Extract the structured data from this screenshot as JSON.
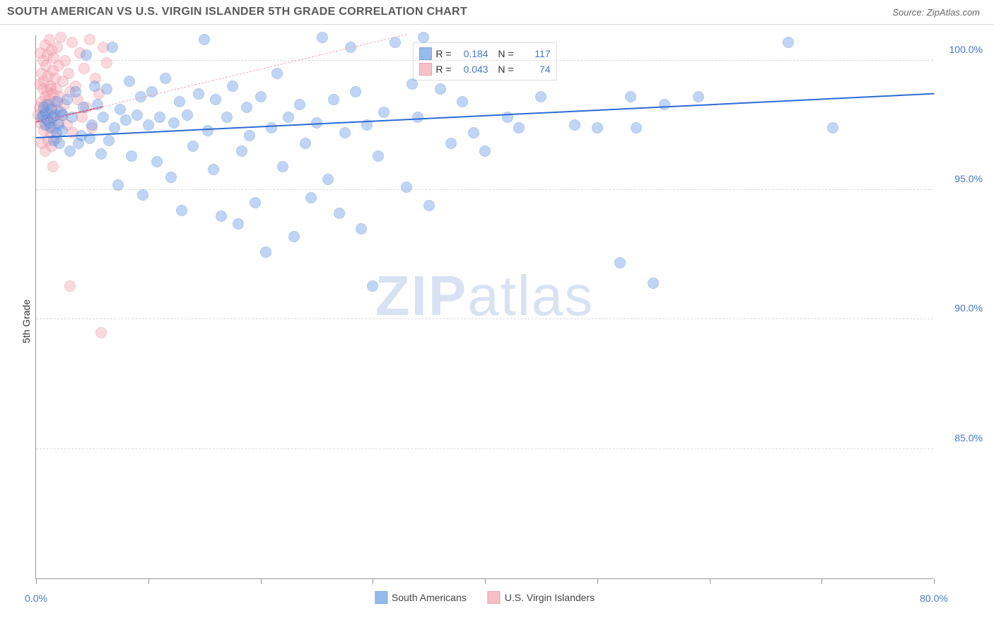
{
  "header": {
    "title": "SOUTH AMERICAN VS U.S. VIRGIN ISLANDER 5TH GRADE CORRELATION CHART",
    "source": "Source: ZipAtlas.com"
  },
  "ylabel": "5th Grade",
  "watermark": {
    "bold": "ZIP",
    "light": "atlas"
  },
  "chart": {
    "type": "scatter",
    "background_color": "#ffffff",
    "grid_color": "#dcdcdc",
    "axis_color": "#999999",
    "label_color": "#4978c9",
    "label_fontsize": 14,
    "xlim": [
      0,
      80
    ],
    "ylim": [
      80,
      101
    ],
    "xticks": [
      0,
      10,
      20,
      30,
      40,
      50,
      60,
      70,
      80
    ],
    "xtick_labels": {
      "0": "0.0%",
      "80": "80.0%"
    },
    "yticks": [
      85,
      90,
      95,
      100
    ],
    "ytick_labels": {
      "85": "85.0%",
      "90": "90.0%",
      "95": "95.0%",
      "100": "100.0%"
    },
    "marker_radius": 8,
    "marker_opacity": 0.42,
    "marker_border_opacity": 0.75,
    "series": [
      {
        "name": "South Americans",
        "color": "#6b9de8",
        "border_color": "#4a7fd0",
        "R": "0.184",
        "N": "117",
        "trend": {
          "x1": 0,
          "y1": 97.0,
          "x2": 80,
          "y2": 98.7,
          "color": "#2d6bd4",
          "width": 2.5,
          "dash": false
        },
        "cone": {
          "x1": 0,
          "y1": 97.6,
          "x2": 33,
          "y2": 101.0,
          "color": "#f4a6b3",
          "width": 1,
          "dash": true
        },
        "points": [
          [
            0.5,
            97.8
          ],
          [
            0.6,
            97.9
          ],
          [
            0.7,
            98.2
          ],
          [
            0.8,
            97.5
          ],
          [
            0.9,
            98.0
          ],
          [
            1.0,
            97.7
          ],
          [
            1.1,
            98.3
          ],
          [
            1.2,
            97.6
          ],
          [
            1.3,
            97.4
          ],
          [
            1.4,
            98.1
          ],
          [
            1.5,
            97.8
          ],
          [
            1.6,
            96.9
          ],
          [
            1.7,
            97.9
          ],
          [
            1.8,
            97.2
          ],
          [
            1.9,
            98.4
          ],
          [
            2.0,
            97.5
          ],
          [
            2.1,
            96.8
          ],
          [
            2.2,
            98.0
          ],
          [
            2.3,
            97.3
          ],
          [
            2.4,
            97.9
          ],
          [
            2.8,
            98.5
          ],
          [
            3.0,
            96.5
          ],
          [
            3.2,
            97.8
          ],
          [
            3.5,
            98.8
          ],
          [
            3.8,
            96.8
          ],
          [
            4.0,
            97.1
          ],
          [
            4.2,
            98.2
          ],
          [
            4.5,
            100.2
          ],
          [
            4.8,
            97.0
          ],
          [
            5.0,
            97.5
          ],
          [
            5.2,
            99.0
          ],
          [
            5.5,
            98.3
          ],
          [
            5.8,
            96.4
          ],
          [
            6.0,
            97.8
          ],
          [
            6.3,
            98.9
          ],
          [
            6.5,
            96.9
          ],
          [
            6.8,
            100.5
          ],
          [
            7.0,
            97.4
          ],
          [
            7.3,
            95.2
          ],
          [
            7.5,
            98.1
          ],
          [
            8.0,
            97.7
          ],
          [
            8.3,
            99.2
          ],
          [
            8.5,
            96.3
          ],
          [
            9.0,
            97.9
          ],
          [
            9.3,
            98.6
          ],
          [
            9.5,
            94.8
          ],
          [
            10.0,
            97.5
          ],
          [
            10.3,
            98.8
          ],
          [
            10.8,
            96.1
          ],
          [
            11.0,
            97.8
          ],
          [
            11.5,
            99.3
          ],
          [
            12.0,
            95.5
          ],
          [
            12.3,
            97.6
          ],
          [
            12.8,
            98.4
          ],
          [
            13.0,
            94.2
          ],
          [
            13.5,
            97.9
          ],
          [
            14.0,
            96.7
          ],
          [
            14.5,
            98.7
          ],
          [
            15.0,
            100.8
          ],
          [
            15.3,
            97.3
          ],
          [
            15.8,
            95.8
          ],
          [
            16.0,
            98.5
          ],
          [
            16.5,
            94.0
          ],
          [
            17.0,
            97.8
          ],
          [
            17.5,
            99.0
          ],
          [
            18.0,
            93.7
          ],
          [
            18.3,
            96.5
          ],
          [
            18.8,
            98.2
          ],
          [
            19.0,
            97.1
          ],
          [
            19.5,
            94.5
          ],
          [
            20.0,
            98.6
          ],
          [
            20.5,
            92.6
          ],
          [
            21.0,
            97.4
          ],
          [
            21.5,
            99.5
          ],
          [
            22.0,
            95.9
          ],
          [
            22.5,
            97.8
          ],
          [
            23.0,
            93.2
          ],
          [
            23.5,
            98.3
          ],
          [
            24.0,
            96.8
          ],
          [
            24.5,
            94.7
          ],
          [
            25.0,
            97.6
          ],
          [
            25.5,
            100.9
          ],
          [
            26.0,
            95.4
          ],
          [
            26.5,
            98.5
          ],
          [
            27.0,
            94.1
          ],
          [
            27.5,
            97.2
          ],
          [
            28.0,
            100.5
          ],
          [
            28.5,
            98.8
          ],
          [
            29.0,
            93.5
          ],
          [
            29.5,
            97.5
          ],
          [
            30.0,
            91.3
          ],
          [
            30.5,
            96.3
          ],
          [
            31.0,
            98.0
          ],
          [
            32.0,
            100.7
          ],
          [
            33.0,
            95.1
          ],
          [
            33.5,
            99.1
          ],
          [
            34.0,
            97.8
          ],
          [
            34.5,
            100.9
          ],
          [
            35.0,
            94.4
          ],
          [
            36.0,
            98.9
          ],
          [
            37.0,
            96.8
          ],
          [
            38.0,
            98.4
          ],
          [
            39.0,
            97.2
          ],
          [
            40.0,
            96.5
          ],
          [
            42.0,
            97.8
          ],
          [
            43.0,
            97.4
          ],
          [
            45.0,
            98.6
          ],
          [
            48.0,
            97.5
          ],
          [
            50.0,
            97.4
          ],
          [
            52.0,
            92.2
          ],
          [
            53.0,
            98.6
          ],
          [
            53.5,
            97.4
          ],
          [
            55.0,
            91.4
          ],
          [
            56.0,
            98.3
          ],
          [
            59.0,
            98.6
          ],
          [
            67.0,
            100.7
          ],
          [
            71.0,
            97.4
          ]
        ]
      },
      {
        "name": "U.S. Virgin Islanders",
        "color": "#f4a6b3",
        "border_color": "#e77a8f",
        "R": "0.043",
        "N": "74",
        "trend": {
          "x1": 0,
          "y1": 97.6,
          "x2": 6,
          "y2": 98.2,
          "color": "#d84a6a",
          "width": 2.5,
          "dash": false
        },
        "points": [
          [
            0.2,
            97.9
          ],
          [
            0.3,
            98.2
          ],
          [
            0.3,
            99.1
          ],
          [
            0.4,
            97.6
          ],
          [
            0.4,
            100.3
          ],
          [
            0.5,
            98.4
          ],
          [
            0.5,
            96.8
          ],
          [
            0.5,
            99.5
          ],
          [
            0.6,
            97.8
          ],
          [
            0.6,
            98.9
          ],
          [
            0.6,
            100.0
          ],
          [
            0.7,
            97.3
          ],
          [
            0.7,
            99.2
          ],
          [
            0.7,
            98.1
          ],
          [
            0.8,
            96.5
          ],
          [
            0.8,
            98.6
          ],
          [
            0.8,
            100.6
          ],
          [
            0.9,
            97.9
          ],
          [
            0.9,
            99.8
          ],
          [
            0.9,
            98.3
          ],
          [
            1.0,
            97.5
          ],
          [
            1.0,
            100.2
          ],
          [
            1.0,
            98.8
          ],
          [
            1.1,
            96.9
          ],
          [
            1.1,
            99.4
          ],
          [
            1.1,
            98.0
          ],
          [
            1.2,
            97.7
          ],
          [
            1.2,
            100.8
          ],
          [
            1.2,
            98.5
          ],
          [
            1.3,
            97.2
          ],
          [
            1.3,
            99.0
          ],
          [
            1.3,
            98.9
          ],
          [
            1.4,
            96.7
          ],
          [
            1.4,
            100.4
          ],
          [
            1.4,
            98.2
          ],
          [
            1.5,
            97.8
          ],
          [
            1.5,
            99.6
          ],
          [
            1.5,
            98.7
          ],
          [
            1.6,
            97.4
          ],
          [
            1.6,
            100.1
          ],
          [
            1.7,
            98.4
          ],
          [
            1.7,
            99.3
          ],
          [
            1.8,
            97.0
          ],
          [
            1.8,
            98.9
          ],
          [
            1.9,
            100.5
          ],
          [
            1.9,
            98.1
          ],
          [
            2.0,
            97.6
          ],
          [
            2.0,
            99.8
          ],
          [
            2.1,
            98.6
          ],
          [
            2.2,
            100.9
          ],
          [
            2.3,
            97.9
          ],
          [
            2.4,
            99.2
          ],
          [
            2.5,
            98.3
          ],
          [
            2.6,
            100.0
          ],
          [
            2.8,
            97.5
          ],
          [
            2.9,
            99.5
          ],
          [
            3.0,
            98.8
          ],
          [
            3.2,
            100.7
          ],
          [
            3.3,
            97.2
          ],
          [
            3.5,
            99.0
          ],
          [
            3.7,
            98.5
          ],
          [
            3.9,
            100.3
          ],
          [
            4.1,
            97.8
          ],
          [
            4.3,
            99.7
          ],
          [
            4.5,
            98.2
          ],
          [
            4.8,
            100.8
          ],
          [
            5.0,
            97.4
          ],
          [
            5.3,
            99.3
          ],
          [
            5.6,
            98.7
          ],
          [
            6.0,
            100.5
          ],
          [
            6.3,
            99.9
          ],
          [
            3.0,
            91.3
          ],
          [
            5.8,
            89.5
          ],
          [
            1.5,
            95.9
          ]
        ]
      }
    ]
  }
}
